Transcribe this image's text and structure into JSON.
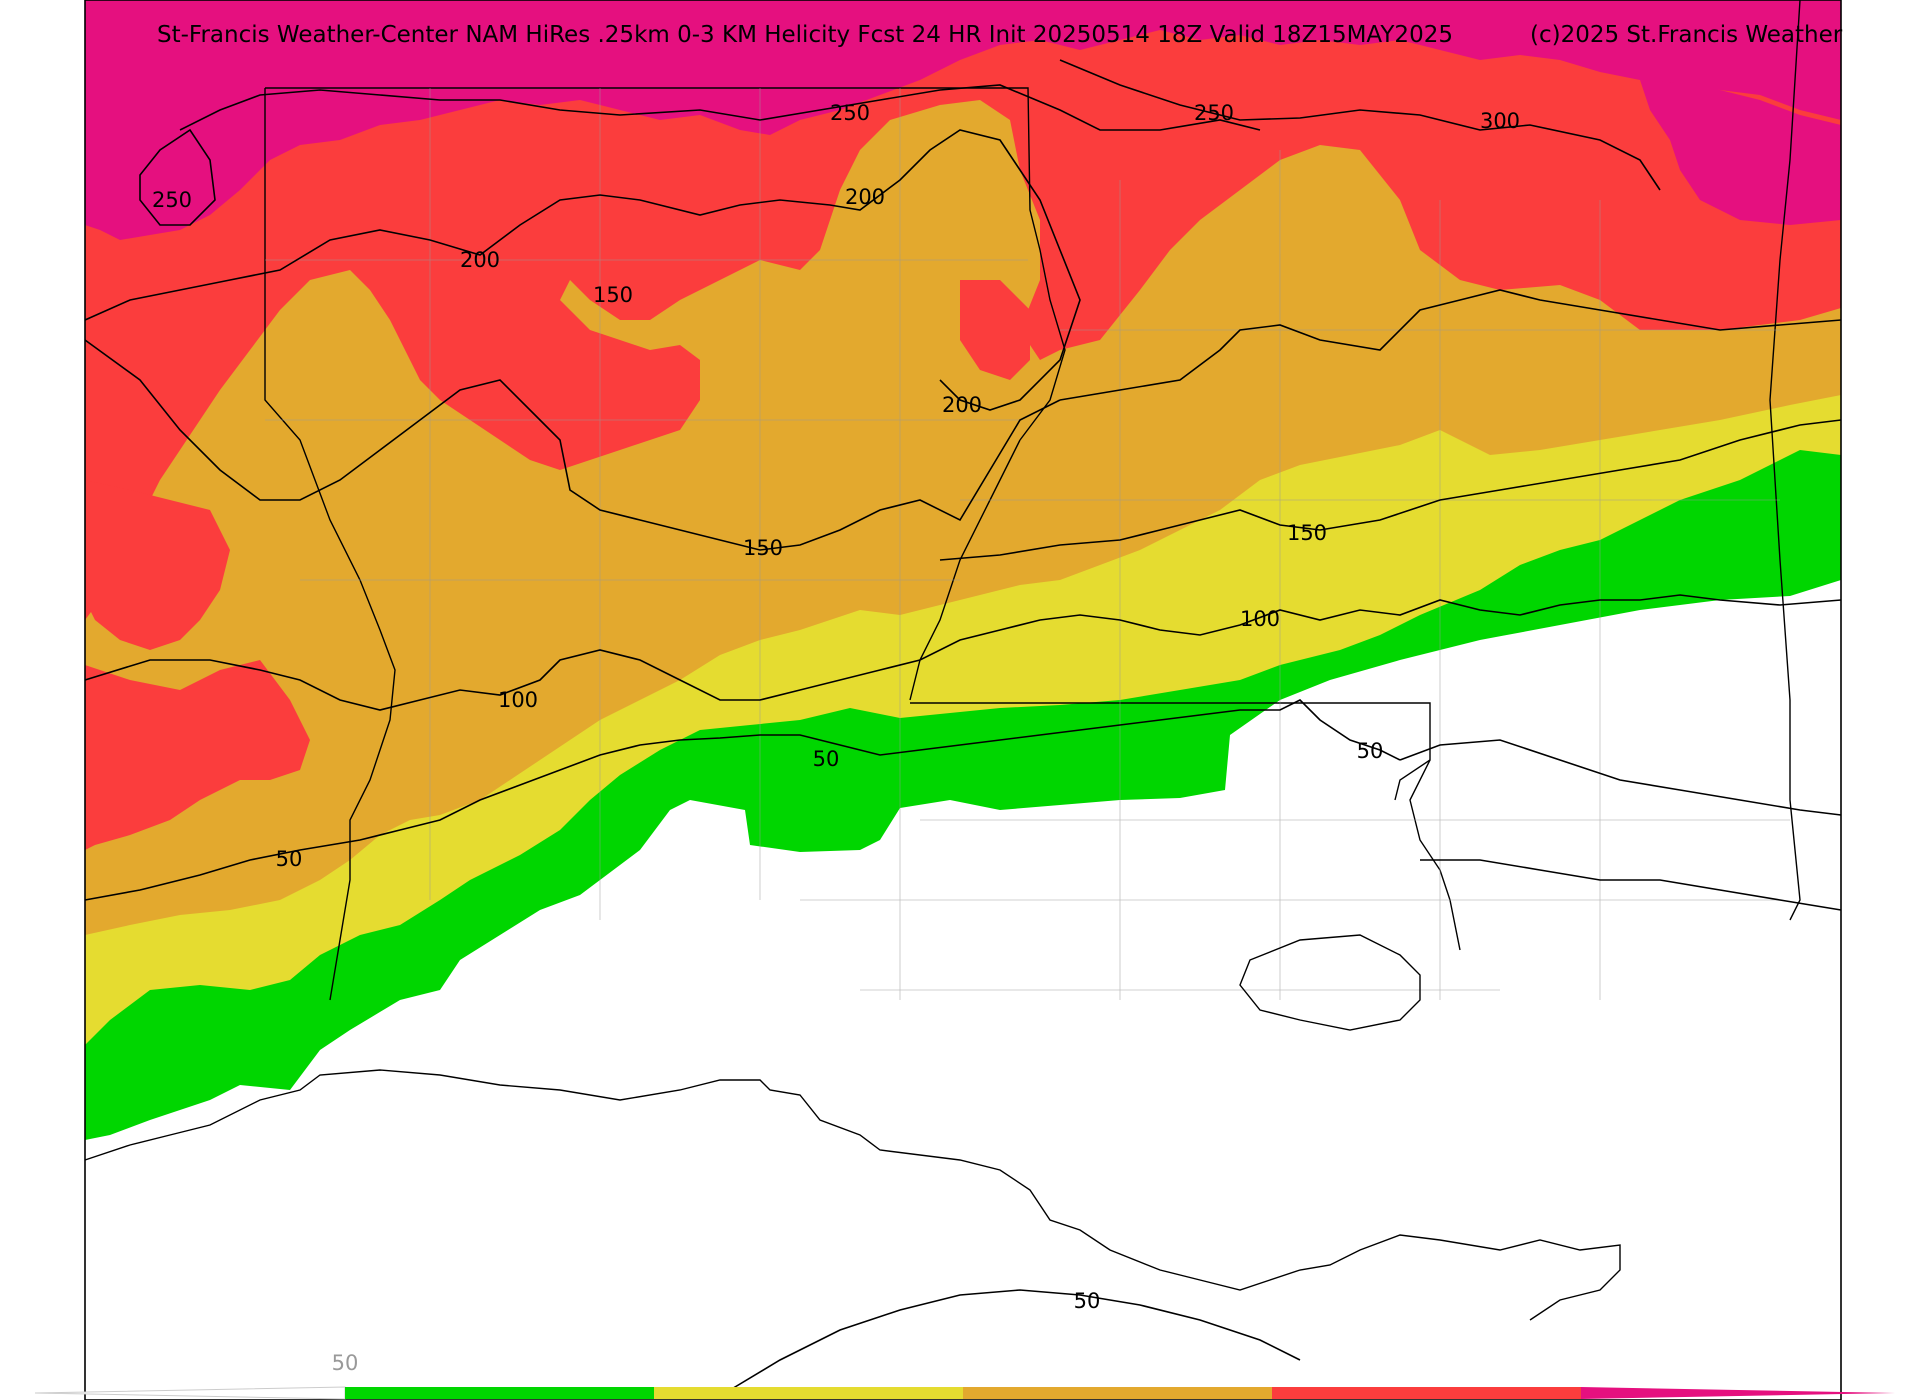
{
  "map": {
    "title": "St-Francis Weather-Center NAM HiRes .25km 0-3 KM Helicity Fcst 24 HR Init 20250514 18Z  Valid 18Z15MAY2025",
    "copyright": "(c)2025 St.Francis Weather",
    "variable": "0-3 KM Helicity",
    "contour_labels": [
      "250",
      "250",
      "250",
      "300",
      "200",
      "200",
      "200",
      "150",
      "150",
      "150",
      "100",
      "100",
      "50",
      "50",
      "50",
      "50"
    ],
    "color_scale": {
      "first_label": "50",
      "colors": [
        "#00d600",
        "#e5dc30",
        "#e3a92e",
        "#fb3d3d",
        "#e5107f"
      ]
    },
    "fill_colors": {
      "green": "#00d600",
      "yellow": "#e5dc30",
      "orange": "#e3a92e",
      "red": "#fb3d3d",
      "magenta": "#e5107f",
      "background": "#ffffff"
    }
  }
}
